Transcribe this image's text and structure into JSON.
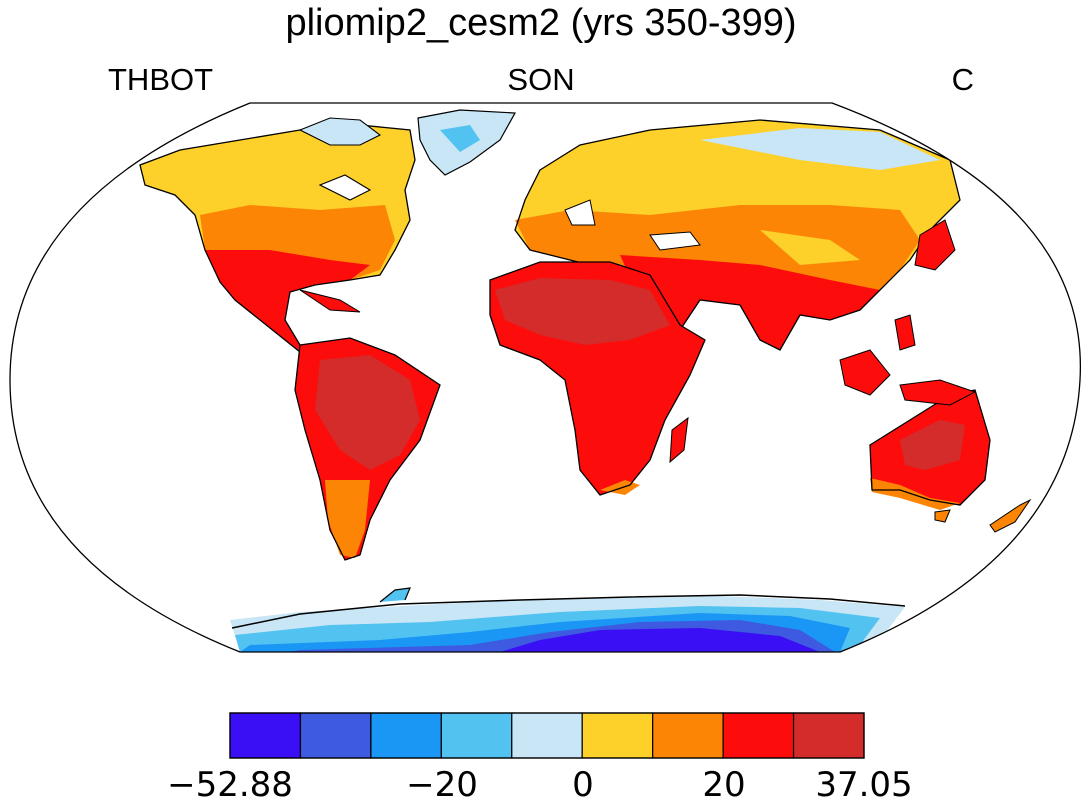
{
  "title": "pliomip2_cesm2 (yrs 350-399)",
  "subtitle_left": "THBOT",
  "subtitle_center": "SON",
  "subtitle_right": "C",
  "map": {
    "projection": "Robinson",
    "variable": "THBOT",
    "season": "SON",
    "units": "C",
    "ocean_color": "#ffffff",
    "coastline_color": "#000000"
  },
  "colorbar": {
    "min": -52.88,
    "max": 37.05,
    "colors": [
      "#3b0ff5",
      "#3d5ae0",
      "#1a96f5",
      "#52c2f0",
      "#c8e6f6",
      "#fdd02a",
      "#fc8505",
      "#fc0d0c",
      "#d42b2b"
    ],
    "tick_labels": [
      "−52.88",
      "−20",
      "0",
      "20",
      "37.05"
    ]
  }
}
